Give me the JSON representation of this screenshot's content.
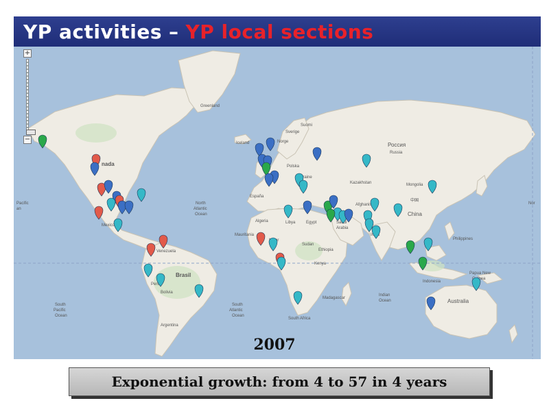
{
  "title": {
    "part1": "YP activities",
    "separator": "–",
    "part2": "YP local sections",
    "part1_color": "#ffffff",
    "part2_color": "#e8222a"
  },
  "map": {
    "controls": {
      "zoom_in": "+",
      "zoom_out": "−"
    },
    "pin_colors": {
      "blue": "#3b6fc4",
      "cyan": "#35b8c7",
      "red": "#e25a4a",
      "green": "#2aa84a"
    },
    "labels": {
      "greenland": "Greenland",
      "iceland": "Iceland",
      "canada": "nada",
      "russia": "Россия",
      "russia_sub": "Russia",
      "kazakhstan": "Kazakhstan",
      "mongolia": "Mongolia",
      "china_cn": "中国",
      "china": "China",
      "north_pacific_left": "Pacific",
      "north_pacific_left_2": "an",
      "north_atlantic": "North",
      "north_atlantic_2": "Atlantic",
      "north_atlantic_3": "Ocean",
      "north_pacific_right": "Nor",
      "algeria": "Algeria",
      "libya": "Libya",
      "egypt": "Egypt",
      "saudi": "Saudi",
      "saudi_2": "Arabia",
      "mauritania": "Mauritania",
      "niger": "Niger",
      "sudan": "Sudan",
      "ethiopia": "Ethiopia",
      "kenya": "Kenya",
      "espana": "España",
      "sverige": "Sverige",
      "suomi": "Suomi",
      "norge": "Norge",
      "polska": "Polska",
      "ukraine": "Ukraine",
      "afghanistan": "Afghanistan",
      "mexico": "Mexico",
      "venezuela": "Venezuela",
      "brasil": "Brasil",
      "peru": "Peru",
      "bolivia": "Bolivia",
      "argentina": "Argentina",
      "south_pacific": "South",
      "south_pacific_2": "Pacific",
      "south_pacific_3": "Ocean",
      "south_atlantic": "South",
      "south_atlantic_2": "Atlantic",
      "south_atlantic_3": "Ocean",
      "indian_ocean": "Indian",
      "indian_ocean_2": "Ocean",
      "madagascar": "Madagascar",
      "australia": "Australia",
      "papua": "Papua New",
      "papua_2": "Guinea",
      "india": "India",
      "indonesia": "Indonesia",
      "philippines": "Philippines",
      "south_africa": "South Africa"
    }
  },
  "year": "2007",
  "caption": "Exponential growth: from 4 to 57 in 4 years"
}
